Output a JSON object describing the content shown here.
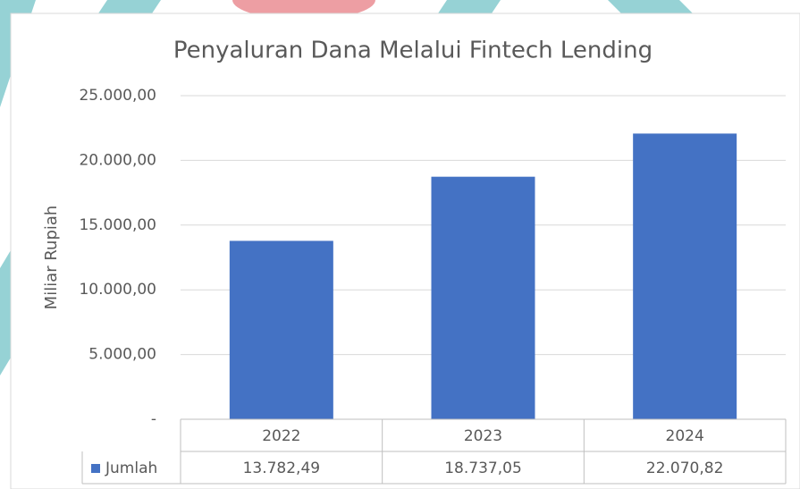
{
  "chart_data": {
    "type": "bar",
    "title": "Penyaluran Dana Melalui Fintech Lending",
    "y_label": "Miliar Rupiah",
    "categories": [
      "2022",
      "2023",
      "2024"
    ],
    "series": [
      {
        "name": "Jumlah",
        "color": "#4472c4",
        "values": [
          13782.49,
          18737.05,
          22070.82
        ],
        "value_labels": [
          "13.782,49",
          "18.737,05",
          "22.070,82"
        ]
      }
    ],
    "ylim": [
      0,
      25000
    ],
    "yticks": [
      {
        "value": 0,
        "label": "-"
      },
      {
        "value": 5000,
        "label": "5.000,00"
      },
      {
        "value": 10000,
        "label": "10.000,00"
      },
      {
        "value": 15000,
        "label": "15.000,00"
      },
      {
        "value": 20000,
        "label": "20.000,00"
      },
      {
        "value": 25000,
        "label": "25.000,00"
      }
    ],
    "grid": true,
    "data_table": true
  }
}
